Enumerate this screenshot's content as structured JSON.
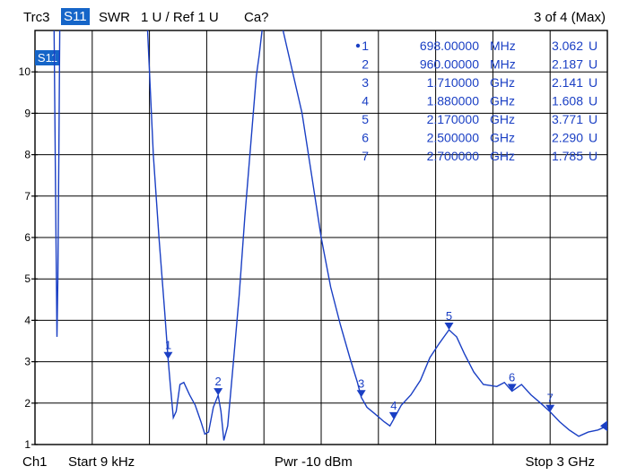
{
  "header": {
    "trace": "Trc3",
    "measurement": "S11",
    "format": "SWR",
    "scale": "1 U /  Ref 1 U",
    "cal": "Ca?",
    "marker_count": "3 of 4 (Max)"
  },
  "footer": {
    "channel": "Ch1",
    "start": "Start  9 kHz",
    "power": "Pwr  -10 dBm",
    "stop": "Stop  3 GHz"
  },
  "colors": {
    "trace": "#1a3fc4",
    "badge": "#1565c8",
    "grid": "#000000"
  },
  "chart_data": {
    "type": "line",
    "title": "",
    "xlabel": "",
    "ylabel": "",
    "xunit": "GHz",
    "xlim": [
      9e-06,
      3.0
    ],
    "ylim": [
      1,
      11
    ],
    "yticks": [
      1,
      2,
      3,
      4,
      5,
      6,
      7,
      8,
      9,
      10
    ],
    "grid": true,
    "trace_badge": "S11",
    "series": [
      {
        "name": "S11",
        "points": [
          [
            0.1,
            11
          ],
          [
            0.11,
            6.0
          ],
          [
            0.115,
            3.6
          ],
          [
            0.12,
            5.0
          ],
          [
            0.125,
            8.0
          ],
          [
            0.13,
            11
          ],
          [
            0.59,
            11
          ],
          [
            0.62,
            8.0
          ],
          [
            0.65,
            6.0
          ],
          [
            0.68,
            4.2
          ],
          [
            0.698,
            3.06
          ],
          [
            0.71,
            2.4
          ],
          [
            0.725,
            1.65
          ],
          [
            0.74,
            1.8
          ],
          [
            0.76,
            2.45
          ],
          [
            0.78,
            2.5
          ],
          [
            0.81,
            2.2
          ],
          [
            0.84,
            1.95
          ],
          [
            0.87,
            1.55
          ],
          [
            0.89,
            1.25
          ],
          [
            0.91,
            1.3
          ],
          [
            0.935,
            1.9
          ],
          [
            0.96,
            2.19
          ],
          [
            0.975,
            1.8
          ],
          [
            0.99,
            1.1
          ],
          [
            1.01,
            1.45
          ],
          [
            1.04,
            3.0
          ],
          [
            1.07,
            4.6
          ],
          [
            1.1,
            6.5
          ],
          [
            1.13,
            8.2
          ],
          [
            1.16,
            9.9
          ],
          [
            1.175,
            10.4
          ],
          [
            1.19,
            11
          ],
          [
            1.3,
            11
          ],
          [
            1.4,
            9.0
          ],
          [
            1.45,
            7.5
          ],
          [
            1.5,
            6.0
          ],
          [
            1.55,
            4.8
          ],
          [
            1.6,
            3.9
          ],
          [
            1.65,
            3.1
          ],
          [
            1.69,
            2.5
          ],
          [
            1.71,
            2.14
          ],
          [
            1.74,
            1.9
          ],
          [
            1.78,
            1.75
          ],
          [
            1.83,
            1.55
          ],
          [
            1.86,
            1.45
          ],
          [
            1.88,
            1.61
          ],
          [
            1.92,
            1.95
          ],
          [
            1.97,
            2.2
          ],
          [
            2.02,
            2.55
          ],
          [
            2.07,
            3.1
          ],
          [
            2.12,
            3.45
          ],
          [
            2.17,
            3.77
          ],
          [
            2.21,
            3.6
          ],
          [
            2.25,
            3.2
          ],
          [
            2.3,
            2.75
          ],
          [
            2.35,
            2.45
          ],
          [
            2.42,
            2.4
          ],
          [
            2.46,
            2.5
          ],
          [
            2.5,
            2.29
          ],
          [
            2.55,
            2.45
          ],
          [
            2.6,
            2.2
          ],
          [
            2.65,
            2.0
          ],
          [
            2.7,
            1.79
          ],
          [
            2.75,
            1.55
          ],
          [
            2.8,
            1.35
          ],
          [
            2.85,
            1.2
          ],
          [
            2.9,
            1.3
          ],
          [
            2.95,
            1.35
          ],
          [
            3.0,
            1.45
          ]
        ]
      }
    ],
    "markers": [
      {
        "id": "1",
        "active": true,
        "freq": "698.00000",
        "unit": "MHz",
        "value": "3.062",
        "vunit": "U",
        "x": 0.698,
        "y": 3.062
      },
      {
        "id": "2",
        "active": false,
        "freq": "960.00000",
        "unit": "MHz",
        "value": "2.187",
        "vunit": "U",
        "x": 0.96,
        "y": 2.187
      },
      {
        "id": "3",
        "active": false,
        "freq": "1.710000",
        "unit": "GHz",
        "value": "2.141",
        "vunit": "U",
        "x": 1.71,
        "y": 2.141
      },
      {
        "id": "4",
        "active": false,
        "freq": "1.880000",
        "unit": "GHz",
        "value": "1.608",
        "vunit": "U",
        "x": 1.88,
        "y": 1.608
      },
      {
        "id": "5",
        "active": false,
        "freq": "2.170000",
        "unit": "GHz",
        "value": "3.771",
        "vunit": "U",
        "x": 2.17,
        "y": 3.771
      },
      {
        "id": "6",
        "active": false,
        "freq": "2.500000",
        "unit": "GHz",
        "value": "2.290",
        "vunit": "U",
        "x": 2.5,
        "y": 2.29
      },
      {
        "id": "7",
        "active": false,
        "freq": "2.700000",
        "unit": "GHz",
        "value": "1.785",
        "vunit": "U",
        "x": 2.7,
        "y": 1.785
      }
    ]
  }
}
